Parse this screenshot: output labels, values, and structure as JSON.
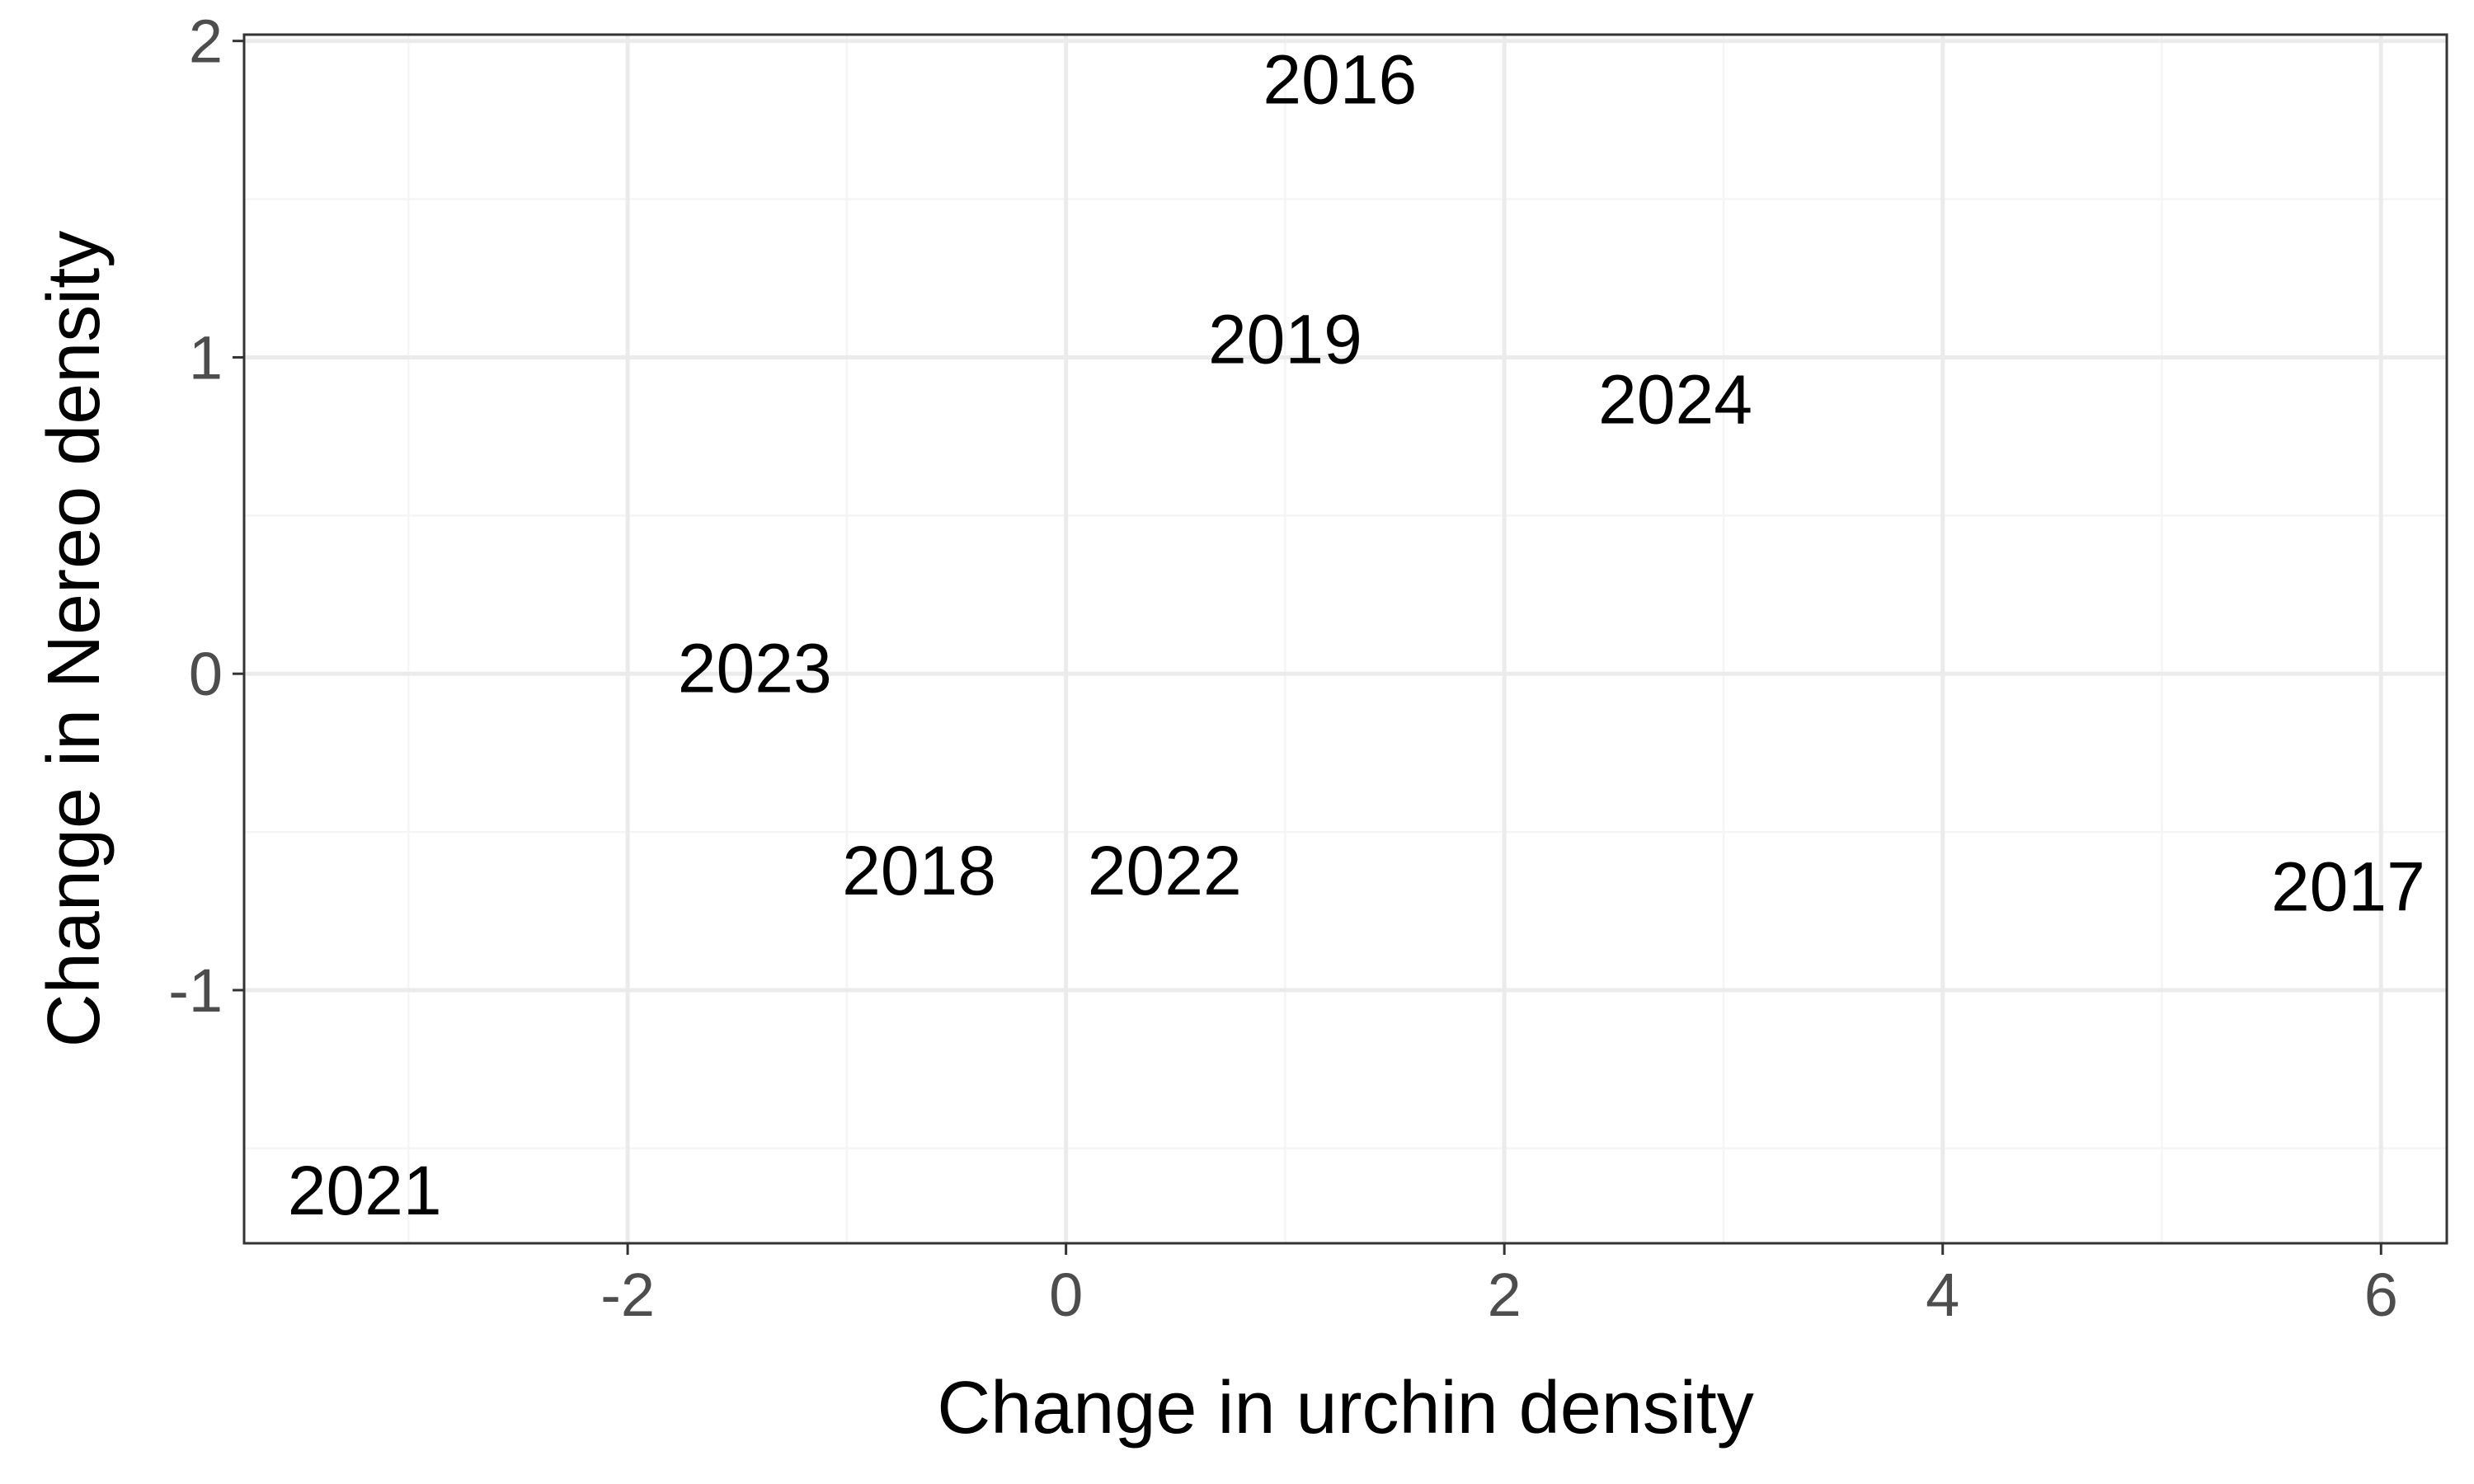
{
  "chart_data": {
    "type": "scatter",
    "title": "",
    "xlabel": "Change in urchin density",
    "ylabel": "Change in Nereo density",
    "xlim": [
      -3.75,
      6.3
    ],
    "ylim": [
      -1.8,
      2.02
    ],
    "x_ticks": [
      {
        "value": -2,
        "label": "-2"
      },
      {
        "value": 0,
        "label": "0"
      },
      {
        "value": 2,
        "label": "2"
      },
      {
        "value": 4,
        "label": "4"
      },
      {
        "value": 6,
        "label": "6"
      }
    ],
    "y_ticks": [
      {
        "value": -1,
        "label": "-1"
      },
      {
        "value": 0,
        "label": "0"
      },
      {
        "value": 1,
        "label": "1"
      },
      {
        "value": 2,
        "label": "2"
      }
    ],
    "x_minor_ticks": [
      -3,
      -1,
      1,
      3,
      5
    ],
    "y_minor_ticks": [
      -1.5,
      -0.5,
      0.5,
      1.5
    ],
    "grid": true,
    "points": [
      {
        "label": "2016",
        "x": 1.25,
        "y": 1.88
      },
      {
        "label": "2017",
        "x": 5.85,
        "y": -0.67
      },
      {
        "label": "2018",
        "x": -0.67,
        "y": -0.62
      },
      {
        "label": "2019",
        "x": 1.0,
        "y": 1.06
      },
      {
        "label": "2021",
        "x": -3.2,
        "y": -1.63
      },
      {
        "label": "2022",
        "x": 0.45,
        "y": -0.62
      },
      {
        "label": "2023",
        "x": -1.42,
        "y": 0.02
      },
      {
        "label": "2024",
        "x": 2.78,
        "y": 0.87
      }
    ],
    "colors": {
      "panel_border": "#333333",
      "grid_major": "#ebebeb",
      "grid_minor": "#f5f5f5",
      "tick_text": "#4d4d4d",
      "text": "#000000"
    }
  }
}
